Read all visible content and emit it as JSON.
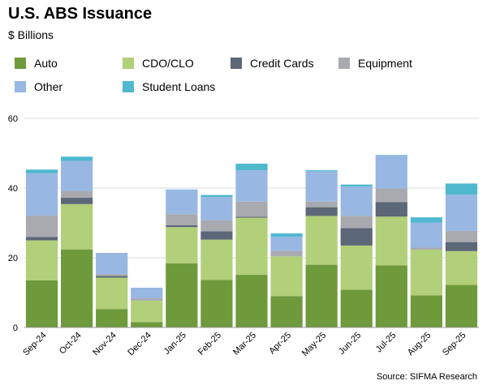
{
  "title": "U.S. ABS Issuance",
  "subtitle": "$ Billions",
  "source": "Source: SIFMA Research",
  "chart_data": {
    "type": "bar",
    "stacked": true,
    "categories": [
      "Sep-24",
      "Oct-24",
      "Nov-24",
      "Dec-24",
      "Jan-25",
      "Feb-25",
      "Mar-25",
      "Apr-25",
      "May-25",
      "Jun-25",
      "Jul-25",
      "Aug-25",
      "Sep-25"
    ],
    "series": [
      {
        "name": "Auto",
        "color": "#6e9a3c",
        "values": [
          13.5,
          22.4,
          5.3,
          1.5,
          18.4,
          13.6,
          15.1,
          9.0,
          18.0,
          10.8,
          17.8,
          9.2,
          12.2
        ]
      },
      {
        "name": "CDO/CLO",
        "color": "#b2cf7a",
        "values": [
          11.5,
          13.0,
          9.0,
          6.2,
          10.4,
          11.6,
          16.4,
          11.4,
          14.0,
          12.7,
          14.0,
          13.1,
          9.7
        ]
      },
      {
        "name": "Credit Cards",
        "color": "#5c6778",
        "values": [
          1.0,
          1.8,
          0.5,
          0.0,
          0.5,
          2.4,
          0.3,
          0.0,
          2.5,
          5.0,
          4.2,
          0.0,
          2.6
        ]
      },
      {
        "name": "Equipment",
        "color": "#a8aab0",
        "values": [
          6.1,
          2.0,
          0.5,
          0.7,
          3.2,
          3.2,
          4.3,
          1.6,
          1.6,
          3.5,
          3.9,
          0.6,
          3.2
        ]
      },
      {
        "name": "Other",
        "color": "#98b7e2",
        "values": [
          12.2,
          8.6,
          6.1,
          3.0,
          7.0,
          6.6,
          9.0,
          4.0,
          8.7,
          8.4,
          9.5,
          7.2,
          10.4
        ]
      },
      {
        "name": "Student Loans",
        "color": "#4fb8cf",
        "values": [
          1.0,
          1.2,
          0.0,
          0.0,
          0.1,
          0.6,
          1.9,
          1.0,
          0.3,
          0.6,
          0.1,
          1.5,
          3.2
        ]
      }
    ],
    "ylim": [
      0,
      60
    ],
    "yticks": [
      0,
      20,
      40,
      60
    ],
    "grid": true,
    "legend_position": "top"
  }
}
